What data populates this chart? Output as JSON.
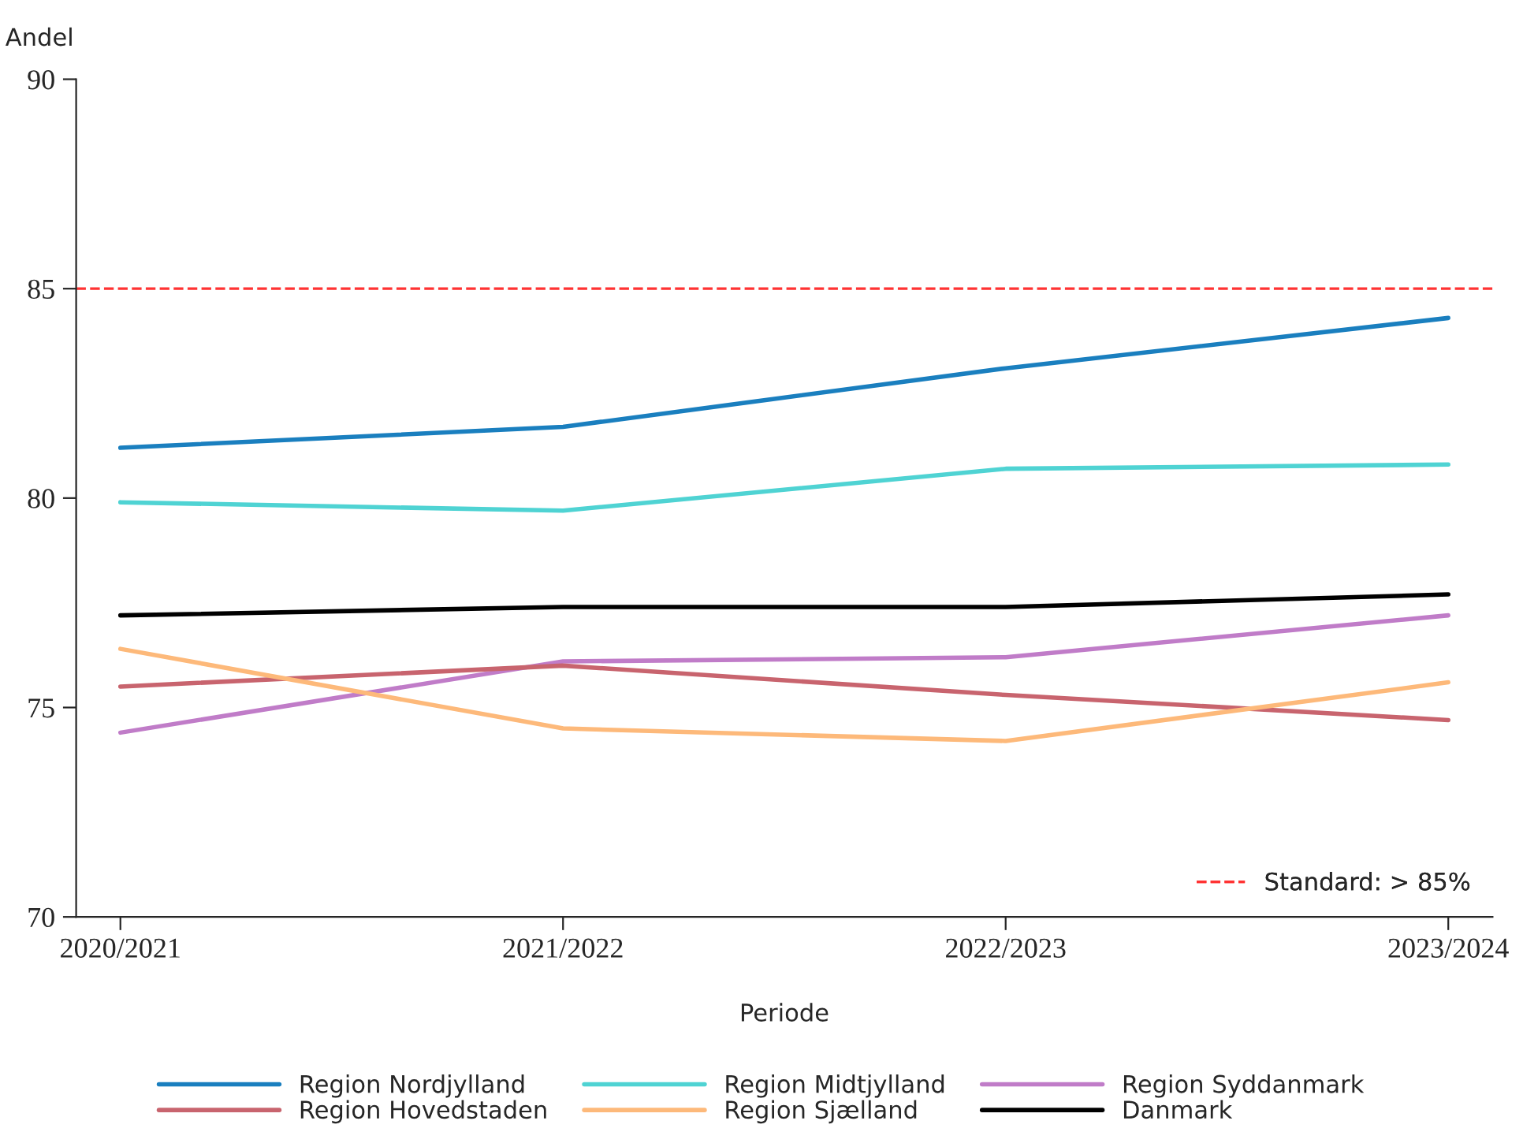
{
  "chart_data": {
    "type": "line",
    "xlabel": "Periode",
    "ylabel": "Andel",
    "categories": [
      "2020/2021",
      "2021/2022",
      "2022/2023",
      "2023/2024"
    ],
    "series": [
      {
        "name": "Region Nordjylland",
        "color": "#1a7fbf",
        "values": [
          81.2,
          81.7,
          83.1,
          84.3
        ]
      },
      {
        "name": "Region Midtjylland",
        "color": "#4fd3d3",
        "values": [
          79.9,
          79.7,
          80.7,
          80.8
        ]
      },
      {
        "name": "Region Syddanmark",
        "color": "#c07cc8",
        "values": [
          74.4,
          76.1,
          76.2,
          77.2
        ]
      },
      {
        "name": "Region Hovedstaden",
        "color": "#c8646e",
        "values": [
          75.5,
          76.0,
          75.3,
          74.7
        ]
      },
      {
        "name": "Region Sjælland",
        "color": "#fdb97a",
        "values": [
          76.4,
          74.5,
          74.2,
          75.6
        ]
      },
      {
        "name": "Danmark",
        "color": "#000000",
        "values": [
          77.2,
          77.4,
          77.4,
          77.7
        ]
      }
    ],
    "ylim": [
      70,
      90
    ],
    "yticks": [
      70,
      75,
      80,
      85,
      90
    ],
    "ref_lines": [
      {
        "axis": "y",
        "value": 85,
        "label": "Standard: > 85%",
        "color": "#ff3333",
        "line_style": "dashed"
      }
    ],
    "grid": false,
    "legend": "bottom",
    "marker": "none",
    "line_style": "solid"
  }
}
